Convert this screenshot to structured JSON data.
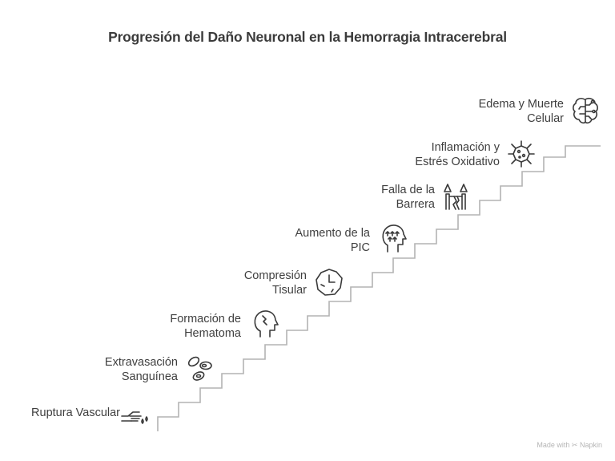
{
  "title": "Progresión del Daño Neuronal en la Hemorragia Intracerebral",
  "steps": [
    {
      "lines": [
        "Ruptura Vascular"
      ],
      "icon": "hand-drip-icon"
    },
    {
      "lines": [
        "Extravasación",
        "Sanguínea"
      ],
      "icon": "blood-cells-icon"
    },
    {
      "lines": [
        "Formación de",
        "Hematoma"
      ],
      "icon": "head-crack-icon"
    },
    {
      "lines": [
        "Compresión",
        "Tisular"
      ],
      "icon": "compressed-tissue-icon"
    },
    {
      "lines": [
        "Aumento de la",
        "PIC"
      ],
      "icon": "head-pressure-icon"
    },
    {
      "lines": [
        "Falla de la",
        "Barrera"
      ],
      "icon": "broken-barrier-icon"
    },
    {
      "lines": [
        "Inflamación y",
        "Estrés Oxidativo"
      ],
      "icon": "virus-icon"
    },
    {
      "lines": [
        "Edema y Muerte",
        "Celular"
      ],
      "icon": "brain-circuit-icon"
    }
  ],
  "footer": {
    "made_with": "Made with",
    "brand": "Napkin"
  },
  "colors": {
    "stairs": "#b3b3b3",
    "text": "#3f3f3f",
    "icon": "#3a3a3a"
  }
}
